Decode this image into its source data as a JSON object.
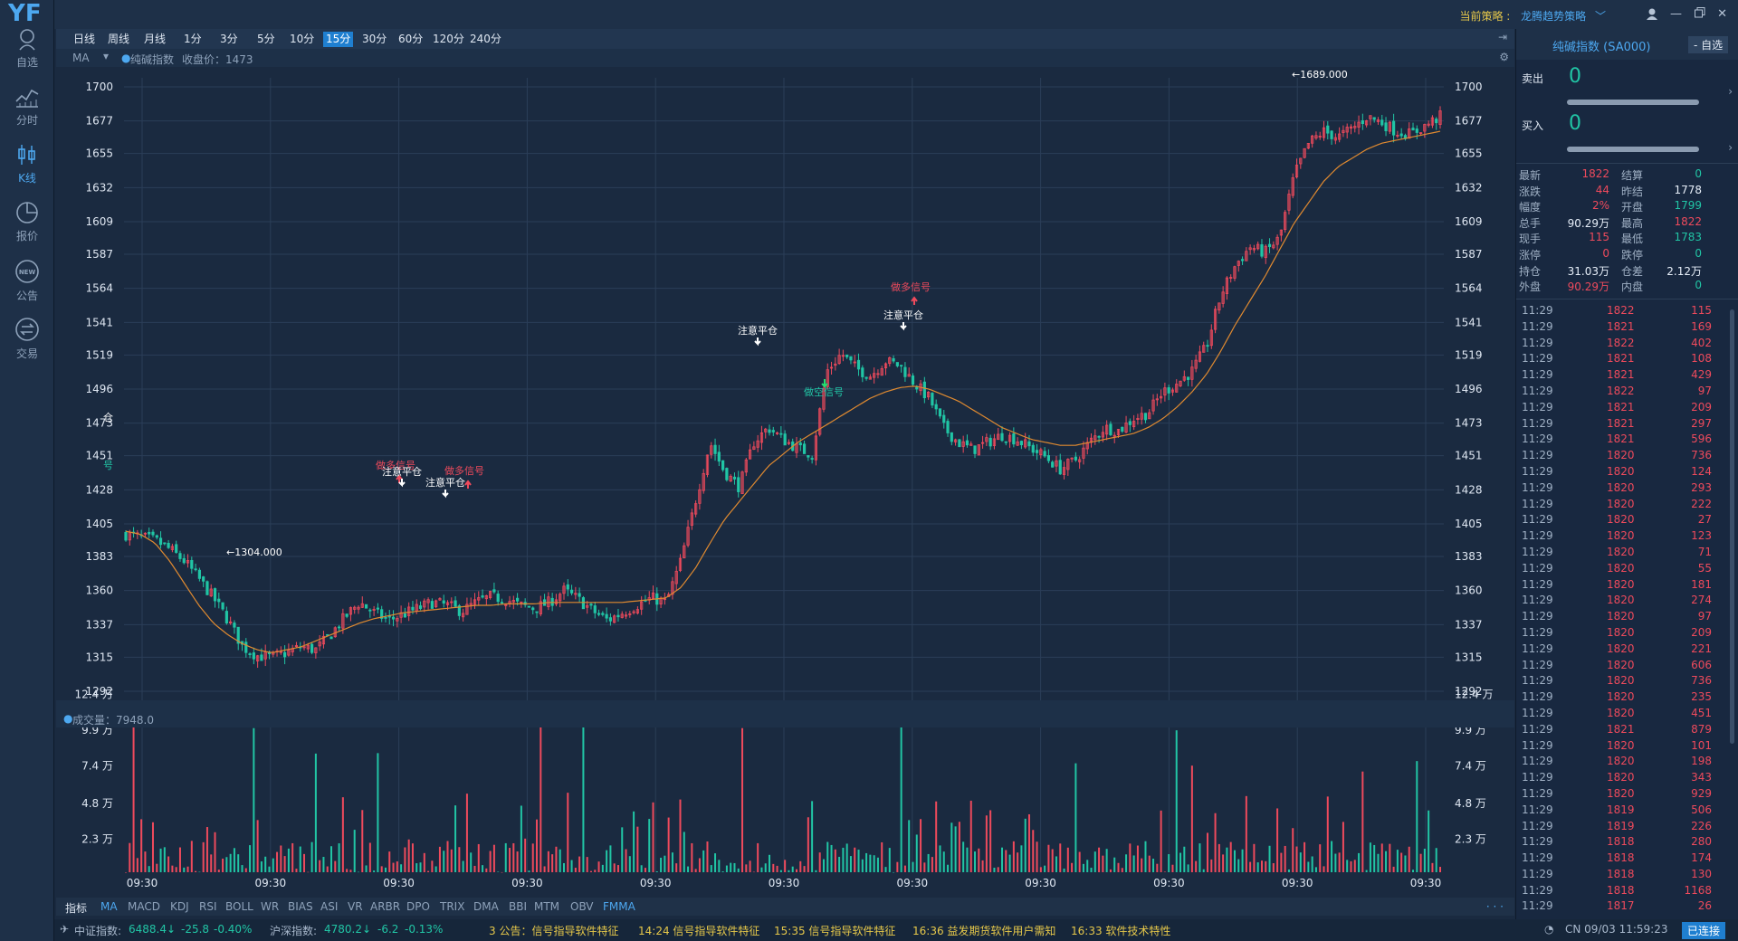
{
  "app": {
    "logo": "YF"
  },
  "nav": [
    {
      "label": "自选",
      "icon": "user-outline-icon"
    },
    {
      "label": "分时",
      "icon": "line-chart-icon"
    },
    {
      "label": "K线",
      "icon": "candlestick-icon",
      "active": true
    },
    {
      "label": "报价",
      "icon": "pie-chart-icon"
    },
    {
      "label": "公告",
      "icon": "new-badge-icon"
    },
    {
      "label": "交易",
      "icon": "exchange-icon"
    }
  ],
  "header": {
    "strategy_label": "当前策略 :",
    "strategy_value": "龙腾趋势策略"
  },
  "timeframes": [
    "日线",
    "周线",
    "月线",
    "1分",
    "3分",
    "5分",
    "10分",
    "15分",
    "30分",
    "60分",
    "120分",
    "240分"
  ],
  "active_timeframe": "15分",
  "ma_bar": {
    "ma": "MA",
    "symbol": "纯碱指数",
    "close_label": "收盘价：1473"
  },
  "vol_bar": {
    "label": "成交量：7948.0"
  },
  "chart_data": [
    {
      "type": "candlestick",
      "price_axis": {
        "ylim": [
          1292,
          1700
        ],
        "ticks": [
          1700,
          1677,
          1655,
          1632,
          1609,
          1587,
          1564,
          1541,
          1519,
          1496,
          1473,
          1451,
          1428,
          1405,
          1383,
          1360,
          1337,
          1315,
          1292
        ]
      },
      "time_ticks": [
        "09:30",
        "09:30",
        "09:30",
        "09:30",
        "09:30",
        "09:30",
        "09:30",
        "09:30",
        "09:30",
        "09:30",
        "09:30"
      ],
      "close": [
        1398,
        1396,
        1394,
        1388,
        1380,
        1368,
        1355,
        1340,
        1322,
        1316,
        1315,
        1318,
        1322,
        1320,
        1330,
        1342,
        1352,
        1345,
        1340,
        1344,
        1348,
        1352,
        1350,
        1346,
        1352,
        1356,
        1354,
        1350,
        1348,
        1352,
        1360,
        1354,
        1346,
        1340,
        1345,
        1350,
        1355,
        1352,
        1380,
        1420,
        1460,
        1440,
        1430,
        1460,
        1470,
        1462,
        1456,
        1452,
        1508,
        1520,
        1510,
        1505,
        1515,
        1512,
        1500,
        1490,
        1470,
        1460,
        1455,
        1460,
        1465,
        1462,
        1456,
        1450,
        1442,
        1448,
        1460,
        1470,
        1468,
        1476,
        1480,
        1494,
        1500,
        1508,
        1525,
        1560,
        1580,
        1592,
        1588,
        1598,
        1640,
        1662,
        1670,
        1666,
        1672,
        1680,
        1676,
        1670,
        1668,
        1674,
        1680
      ],
      "ma": [
        1400,
        1398,
        1392,
        1380,
        1365,
        1350,
        1338,
        1330,
        1324,
        1320,
        1318,
        1320,
        1322,
        1326,
        1330,
        1334,
        1338,
        1341,
        1343,
        1345,
        1346,
        1347,
        1348,
        1349,
        1350,
        1350,
        1351,
        1351,
        1351,
        1352,
        1352,
        1352,
        1352,
        1352,
        1352,
        1353,
        1354,
        1355,
        1362,
        1375,
        1392,
        1408,
        1420,
        1432,
        1444,
        1452,
        1460,
        1466,
        1472,
        1478,
        1484,
        1490,
        1494,
        1497,
        1498,
        1496,
        1492,
        1488,
        1482,
        1476,
        1470,
        1466,
        1462,
        1460,
        1458,
        1458,
        1460,
        1462,
        1464,
        1466,
        1470,
        1476,
        1484,
        1494,
        1506,
        1522,
        1540,
        1556,
        1572,
        1590,
        1608,
        1622,
        1636,
        1646,
        1652,
        1658,
        1662,
        1664,
        1666,
        1668,
        1670
      ],
      "annotations": [
        {
          "text": "←1689.000",
          "kind": "label"
        },
        {
          "text": "←1304.000",
          "kind": "label"
        },
        {
          "text": "做多信号",
          "kind": "long"
        },
        {
          "text": "注意平仓",
          "kind": "close"
        },
        {
          "text": "注意平仓",
          "kind": "close"
        },
        {
          "text": "做多信号",
          "kind": "long"
        },
        {
          "text": "注意平仓",
          "kind": "close"
        },
        {
          "text": "做空信号",
          "kind": "short"
        },
        {
          "text": "做多信号",
          "kind": "long"
        },
        {
          "text": "注意平仓",
          "kind": "close"
        },
        {
          "text": "仓",
          "kind": "label"
        },
        {
          "text": "号",
          "kind": "label"
        }
      ]
    },
    {
      "type": "bar",
      "ylim": [
        0,
        13.5
      ],
      "ticks": [
        "12.4 万",
        "9.9 万",
        "7.4 万",
        "4.8 万",
        "2.3 万"
      ],
      "tick_values": [
        12.4,
        9.9,
        7.4,
        4.8,
        2.3
      ]
    }
  ],
  "indicators": [
    "指标",
    "MA",
    "MACD",
    "KDJ",
    "RSI",
    "BOLL",
    "WR",
    "BIAS",
    "ASI",
    "VR",
    "ARBR",
    "DPO",
    "TRIX",
    "DMA",
    "BBI",
    "MTM",
    "OBV",
    "FMMA"
  ],
  "active_indicator": "MA",
  "status": {
    "idx1_label": "中证指数:",
    "idx1_value": "6488.4↓",
    "idx1_change": "-25.8",
    "idx1_pct": "-0.40%",
    "idx2_label": "沪深指数:",
    "idx2_value": "4780.2↓",
    "idx2_change": "-6.2",
    "idx2_pct": "-0.13%",
    "news": [
      "3  公告：信号指导软件特征",
      "14:24  信号指导软件特征",
      "15:35  信号指导软件特征",
      "16:36  益发期货软件用户需知",
      "16:33  软件技术特性"
    ],
    "time": "CN 09/03 11:59:23",
    "connected": "已连接"
  },
  "right": {
    "title": "纯碱指数 (SA000)",
    "add_btn": "- 自选",
    "sell_label": "卖出",
    "sell_value": "0",
    "buy_label": "买入",
    "buy_value": "0",
    "quote": [
      [
        "最新",
        "1822",
        "结算",
        "0"
      ],
      [
        "涨跌",
        "44",
        "昨结",
        "1778"
      ],
      [
        "幅度",
        "2%",
        "开盘",
        "1799"
      ],
      [
        "总手",
        "90.29万",
        "最高",
        "1822"
      ],
      [
        "现手",
        "115",
        "最低",
        "1783"
      ],
      [
        "涨停",
        "0",
        "跌停",
        "0"
      ],
      [
        "持仓",
        "31.03万",
        "仓差",
        "2.12万"
      ],
      [
        "外盘",
        "90.29万",
        "内盘",
        "0"
      ]
    ],
    "ticks": [
      [
        "11:29",
        "1822",
        "115"
      ],
      [
        "11:29",
        "1821",
        "169"
      ],
      [
        "11:29",
        "1822",
        "402"
      ],
      [
        "11:29",
        "1821",
        "108"
      ],
      [
        "11:29",
        "1821",
        "429"
      ],
      [
        "11:29",
        "1822",
        "97"
      ],
      [
        "11:29",
        "1821",
        "209"
      ],
      [
        "11:29",
        "1821",
        "297"
      ],
      [
        "11:29",
        "1821",
        "596"
      ],
      [
        "11:29",
        "1820",
        "736"
      ],
      [
        "11:29",
        "1820",
        "124"
      ],
      [
        "11:29",
        "1820",
        "293"
      ],
      [
        "11:29",
        "1820",
        "222"
      ],
      [
        "11:29",
        "1820",
        "27"
      ],
      [
        "11:29",
        "1820",
        "123"
      ],
      [
        "11:29",
        "1820",
        "71"
      ],
      [
        "11:29",
        "1820",
        "55"
      ],
      [
        "11:29",
        "1820",
        "181"
      ],
      [
        "11:29",
        "1820",
        "274"
      ],
      [
        "11:29",
        "1820",
        "97"
      ],
      [
        "11:29",
        "1820",
        "209"
      ],
      [
        "11:29",
        "1820",
        "221"
      ],
      [
        "11:29",
        "1820",
        "606"
      ],
      [
        "11:29",
        "1820",
        "736"
      ],
      [
        "11:29",
        "1820",
        "235"
      ],
      [
        "11:29",
        "1820",
        "451"
      ],
      [
        "11:29",
        "1821",
        "879"
      ],
      [
        "11:29",
        "1820",
        "101"
      ],
      [
        "11:29",
        "1820",
        "198"
      ],
      [
        "11:29",
        "1820",
        "343"
      ],
      [
        "11:29",
        "1820",
        "929"
      ],
      [
        "11:29",
        "1819",
        "506"
      ],
      [
        "11:29",
        "1819",
        "226"
      ],
      [
        "11:29",
        "1818",
        "280"
      ],
      [
        "11:29",
        "1818",
        "174"
      ],
      [
        "11:29",
        "1818",
        "130"
      ],
      [
        "11:29",
        "1818",
        "1168"
      ],
      [
        "11:29",
        "1817",
        "26"
      ]
    ]
  },
  "colors": {
    "up": "#ee4a5c",
    "down": "#21c5a5",
    "ma": "#e08a30",
    "accent": "#1f7fd0"
  }
}
